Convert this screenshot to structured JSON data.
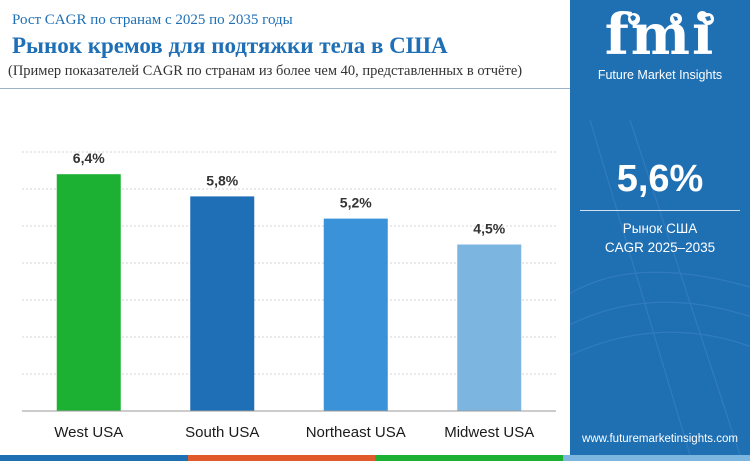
{
  "header": {
    "subtitle": "Рост CAGR по странам с 2025 по 2035 годы",
    "title": "Рынок кремов для подтяжки тела в США",
    "note": "(Пример показателей CAGR по странам из более чем 40, представленных в отчёте)"
  },
  "chart_data": {
    "type": "bar",
    "categories": [
      "West USA",
      "South USA",
      "Northeast USA",
      "Midwest USA"
    ],
    "values": [
      6.4,
      5.8,
      5.2,
      4.5
    ],
    "value_labels": [
      "6,4%",
      "5,8%",
      "5,2%",
      "4,5%"
    ],
    "bar_colors": [
      "#1cb132",
      "#1e6fb5",
      "#3a92d8",
      "#7db5e1"
    ],
    "ylim": [
      0,
      7
    ],
    "grid": true,
    "title": "",
    "xlabel": "",
    "ylabel": ""
  },
  "sidebar": {
    "logo_text": "fmi",
    "logo_subtitle": "Future Market Insights",
    "big_value": "5,6%",
    "value_label_line1": "Рынок США",
    "value_label_line2": "CAGR 2025–2035",
    "website": "www.futuremarketinsights.com"
  },
  "colors": {
    "brand_blue": "#1f6fb3",
    "title_blue": "#1e6fb5",
    "bottom_bar": [
      "#1f6fb3",
      "#e05a2b",
      "#1cb132",
      "#7db5e1"
    ]
  }
}
